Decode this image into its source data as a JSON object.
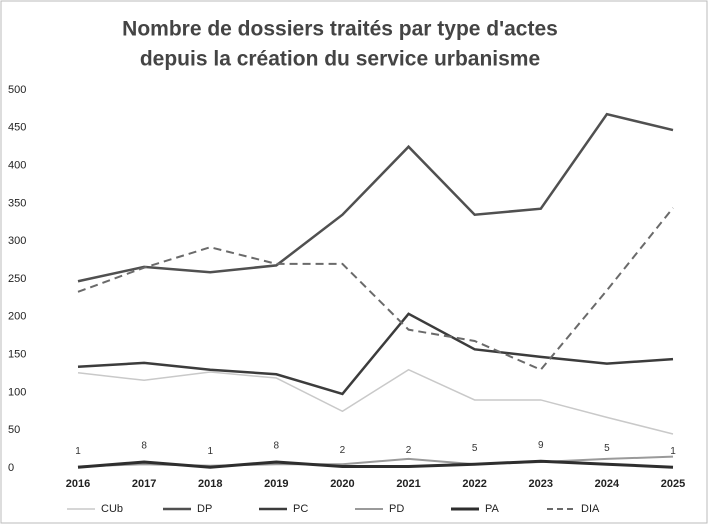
{
  "chart_data": {
    "type": "line",
    "title": [
      "Nombre de dossiers traités par type d'actes",
      "depuis la création du service urbanisme"
    ],
    "categories": [
      "2016",
      "2017",
      "2018",
      "2019",
      "2020",
      "2021",
      "2022",
      "2023",
      "2024",
      "2025"
    ],
    "ylim": [
      0,
      500
    ],
    "yticks": [
      0,
      50,
      100,
      150,
      200,
      250,
      300,
      350,
      400,
      450,
      500
    ],
    "grid": false,
    "legend": "bottom",
    "series": [
      {
        "name": "CUb",
        "color": "#c9c9c9",
        "values": [
          126,
          116,
          127,
          119,
          75,
          130,
          90,
          90,
          67,
          45
        ]
      },
      {
        "name": "DP",
        "color": "#505050",
        "values": [
          247,
          266,
          259,
          268,
          335,
          425,
          335,
          343,
          468,
          447
        ]
      },
      {
        "name": "PC",
        "color": "#3c3c3c",
        "values": [
          134,
          139,
          130,
          124,
          98,
          204,
          157,
          147,
          138,
          144
        ]
      },
      {
        "name": "PD",
        "color": "#9a9a9a",
        "values": [
          2,
          5,
          3,
          5,
          5,
          12,
          5,
          8,
          12,
          15
        ]
      },
      {
        "name": "PA",
        "color": "#2e2e2e",
        "values": [
          1,
          8,
          1,
          8,
          2,
          2,
          5,
          9,
          5,
          1
        ],
        "data_labels": true
      },
      {
        "name": "DIA",
        "color": "#6a6a6a",
        "style": "dashed",
        "values": [
          233,
          265,
          292,
          270,
          270,
          183,
          168,
          130,
          235,
          344
        ]
      }
    ]
  }
}
